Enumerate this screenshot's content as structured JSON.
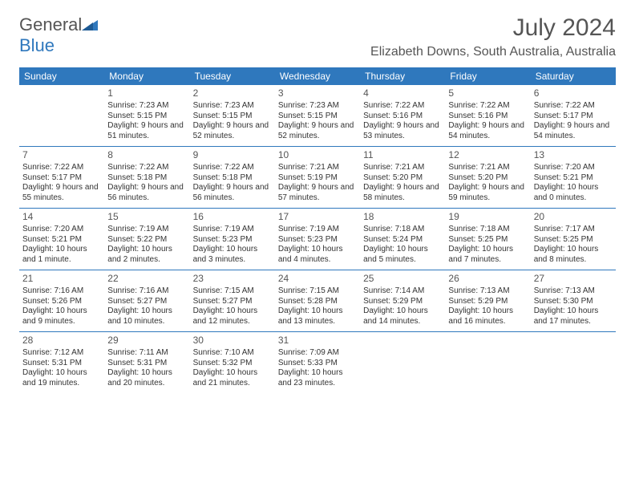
{
  "logo": {
    "part1": "General",
    "part2": "Blue"
  },
  "title": "July 2024",
  "location": "Elizabeth Downs, South Australia, Australia",
  "colors": {
    "brand_blue": "#2f78bd",
    "text_gray": "#555555",
    "body_text": "#333333",
    "background": "#ffffff"
  },
  "day_headers": [
    "Sunday",
    "Monday",
    "Tuesday",
    "Wednesday",
    "Thursday",
    "Friday",
    "Saturday"
  ],
  "weeks": [
    [
      {
        "n": "",
        "sr": "",
        "ss": "",
        "dl": ""
      },
      {
        "n": "1",
        "sr": "Sunrise: 7:23 AM",
        "ss": "Sunset: 5:15 PM",
        "dl": "Daylight: 9 hours and 51 minutes."
      },
      {
        "n": "2",
        "sr": "Sunrise: 7:23 AM",
        "ss": "Sunset: 5:15 PM",
        "dl": "Daylight: 9 hours and 52 minutes."
      },
      {
        "n": "3",
        "sr": "Sunrise: 7:23 AM",
        "ss": "Sunset: 5:15 PM",
        "dl": "Daylight: 9 hours and 52 minutes."
      },
      {
        "n": "4",
        "sr": "Sunrise: 7:22 AM",
        "ss": "Sunset: 5:16 PM",
        "dl": "Daylight: 9 hours and 53 minutes."
      },
      {
        "n": "5",
        "sr": "Sunrise: 7:22 AM",
        "ss": "Sunset: 5:16 PM",
        "dl": "Daylight: 9 hours and 54 minutes."
      },
      {
        "n": "6",
        "sr": "Sunrise: 7:22 AM",
        "ss": "Sunset: 5:17 PM",
        "dl": "Daylight: 9 hours and 54 minutes."
      }
    ],
    [
      {
        "n": "7",
        "sr": "Sunrise: 7:22 AM",
        "ss": "Sunset: 5:17 PM",
        "dl": "Daylight: 9 hours and 55 minutes."
      },
      {
        "n": "8",
        "sr": "Sunrise: 7:22 AM",
        "ss": "Sunset: 5:18 PM",
        "dl": "Daylight: 9 hours and 56 minutes."
      },
      {
        "n": "9",
        "sr": "Sunrise: 7:22 AM",
        "ss": "Sunset: 5:18 PM",
        "dl": "Daylight: 9 hours and 56 minutes."
      },
      {
        "n": "10",
        "sr": "Sunrise: 7:21 AM",
        "ss": "Sunset: 5:19 PM",
        "dl": "Daylight: 9 hours and 57 minutes."
      },
      {
        "n": "11",
        "sr": "Sunrise: 7:21 AM",
        "ss": "Sunset: 5:20 PM",
        "dl": "Daylight: 9 hours and 58 minutes."
      },
      {
        "n": "12",
        "sr": "Sunrise: 7:21 AM",
        "ss": "Sunset: 5:20 PM",
        "dl": "Daylight: 9 hours and 59 minutes."
      },
      {
        "n": "13",
        "sr": "Sunrise: 7:20 AM",
        "ss": "Sunset: 5:21 PM",
        "dl": "Daylight: 10 hours and 0 minutes."
      }
    ],
    [
      {
        "n": "14",
        "sr": "Sunrise: 7:20 AM",
        "ss": "Sunset: 5:21 PM",
        "dl": "Daylight: 10 hours and 1 minute."
      },
      {
        "n": "15",
        "sr": "Sunrise: 7:19 AM",
        "ss": "Sunset: 5:22 PM",
        "dl": "Daylight: 10 hours and 2 minutes."
      },
      {
        "n": "16",
        "sr": "Sunrise: 7:19 AM",
        "ss": "Sunset: 5:23 PM",
        "dl": "Daylight: 10 hours and 3 minutes."
      },
      {
        "n": "17",
        "sr": "Sunrise: 7:19 AM",
        "ss": "Sunset: 5:23 PM",
        "dl": "Daylight: 10 hours and 4 minutes."
      },
      {
        "n": "18",
        "sr": "Sunrise: 7:18 AM",
        "ss": "Sunset: 5:24 PM",
        "dl": "Daylight: 10 hours and 5 minutes."
      },
      {
        "n": "19",
        "sr": "Sunrise: 7:18 AM",
        "ss": "Sunset: 5:25 PM",
        "dl": "Daylight: 10 hours and 7 minutes."
      },
      {
        "n": "20",
        "sr": "Sunrise: 7:17 AM",
        "ss": "Sunset: 5:25 PM",
        "dl": "Daylight: 10 hours and 8 minutes."
      }
    ],
    [
      {
        "n": "21",
        "sr": "Sunrise: 7:16 AM",
        "ss": "Sunset: 5:26 PM",
        "dl": "Daylight: 10 hours and 9 minutes."
      },
      {
        "n": "22",
        "sr": "Sunrise: 7:16 AM",
        "ss": "Sunset: 5:27 PM",
        "dl": "Daylight: 10 hours and 10 minutes."
      },
      {
        "n": "23",
        "sr": "Sunrise: 7:15 AM",
        "ss": "Sunset: 5:27 PM",
        "dl": "Daylight: 10 hours and 12 minutes."
      },
      {
        "n": "24",
        "sr": "Sunrise: 7:15 AM",
        "ss": "Sunset: 5:28 PM",
        "dl": "Daylight: 10 hours and 13 minutes."
      },
      {
        "n": "25",
        "sr": "Sunrise: 7:14 AM",
        "ss": "Sunset: 5:29 PM",
        "dl": "Daylight: 10 hours and 14 minutes."
      },
      {
        "n": "26",
        "sr": "Sunrise: 7:13 AM",
        "ss": "Sunset: 5:29 PM",
        "dl": "Daylight: 10 hours and 16 minutes."
      },
      {
        "n": "27",
        "sr": "Sunrise: 7:13 AM",
        "ss": "Sunset: 5:30 PM",
        "dl": "Daylight: 10 hours and 17 minutes."
      }
    ],
    [
      {
        "n": "28",
        "sr": "Sunrise: 7:12 AM",
        "ss": "Sunset: 5:31 PM",
        "dl": "Daylight: 10 hours and 19 minutes."
      },
      {
        "n": "29",
        "sr": "Sunrise: 7:11 AM",
        "ss": "Sunset: 5:31 PM",
        "dl": "Daylight: 10 hours and 20 minutes."
      },
      {
        "n": "30",
        "sr": "Sunrise: 7:10 AM",
        "ss": "Sunset: 5:32 PM",
        "dl": "Daylight: 10 hours and 21 minutes."
      },
      {
        "n": "31",
        "sr": "Sunrise: 7:09 AM",
        "ss": "Sunset: 5:33 PM",
        "dl": "Daylight: 10 hours and 23 minutes."
      },
      {
        "n": "",
        "sr": "",
        "ss": "",
        "dl": ""
      },
      {
        "n": "",
        "sr": "",
        "ss": "",
        "dl": ""
      },
      {
        "n": "",
        "sr": "",
        "ss": "",
        "dl": ""
      }
    ]
  ]
}
